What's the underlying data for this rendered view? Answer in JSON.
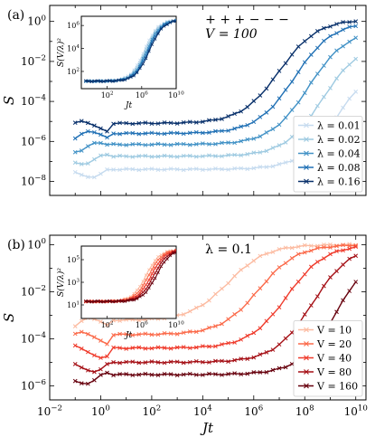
{
  "chart_data": [
    {
      "id": "a",
      "type": "line",
      "panel_label": "(a)",
      "annotation_lines": [
        "+ + + − − −",
        "V = 100"
      ],
      "xlabel": "",
      "ylabel": "S",
      "xscale": "log",
      "yscale": "log",
      "xlim_exp": [
        -2,
        10.4
      ],
      "ylim_exp": [
        -8.7,
        0.8
      ],
      "xticks_exp": [
        -2,
        0,
        2,
        4,
        6,
        8,
        10
      ],
      "yticks_exp": [
        -8,
        -6,
        -4,
        -2,
        0
      ],
      "ytick_labels": [
        "10^-8",
        "10^-6",
        "10^-4",
        "10^-2",
        "10^0"
      ],
      "legend_position": "lower-right",
      "colors": [
        "#c6dbef",
        "#9ecae1",
        "#4292c6",
        "#2171b5",
        "#08306b"
      ],
      "series": [
        {
          "name": "λ = 0.01",
          "plateau": 4e-08,
          "rise_center": 9.3,
          "final": 0.011
        },
        {
          "name": "λ = 0.02",
          "plateau": 1.8e-07,
          "rise_center": 8.7,
          "final": 0.1
        },
        {
          "name": "λ = 0.04",
          "plateau": 7e-07,
          "rise_center": 8.15,
          "final": 0.4
        },
        {
          "name": "λ = 0.08",
          "plateau": 2.5e-06,
          "rise_center": 7.6,
          "final": 1.0
        },
        {
          "name": "λ = 0.16",
          "plateau": 8e-06,
          "rise_center": 7.0,
          "final": 1.3
        }
      ],
      "inset": {
        "ylabel": "S(V/λ)²",
        "xlabel": "Jt",
        "xticks_exp": [
          2,
          6,
          10
        ],
        "yticks_exp": [
          2,
          4,
          6
        ],
        "ylim_exp": [
          0.5,
          6.8
        ],
        "collapsed_plateau_exp": 1.15,
        "rise_center": 6.3
      }
    },
    {
      "id": "b",
      "type": "line",
      "panel_label": "(b)",
      "annotation_lines": [
        "λ = 0.1"
      ],
      "xlabel": "Jt",
      "ylabel": "S",
      "xscale": "log",
      "yscale": "log",
      "xlim_exp": [
        -2,
        10.4
      ],
      "ylim_exp": [
        -6.6,
        0.4
      ],
      "xticks_exp": [
        -2,
        0,
        2,
        4,
        6,
        8,
        10
      ],
      "xtick_labels": [
        "10^-2",
        "10^0",
        "10^2",
        "10^4",
        "10^6",
        "10^8",
        "10^10"
      ],
      "yticks_exp": [
        -6,
        -4,
        -2,
        0
      ],
      "ytick_labels": [
        "10^-6",
        "10^-4",
        "10^-2",
        "10^0"
      ],
      "legend_position": "lower-right",
      "colors": [
        "#fcbba1",
        "#fb6a4a",
        "#ef3b2c",
        "#a50f15",
        "#67000d"
      ],
      "series": [
        {
          "name": "V = 10",
          "plateau": 0.0006,
          "rise_center": 5.0,
          "final": 1.0
        },
        {
          "name": "V = 20",
          "plateau": 0.00015,
          "rise_center": 6.2,
          "final": 1.0
        },
        {
          "name": "V = 40",
          "plateau": 4e-05,
          "rise_center": 7.3,
          "final": 1.0
        },
        {
          "name": "V = 80",
          "plateau": 1e-05,
          "rise_center": 8.3,
          "final": 1.0
        },
        {
          "name": "V = 160",
          "plateau": 3e-06,
          "rise_center": 9.3,
          "final": 1.0
        }
      ],
      "inset": {
        "ylabel": "S(V/λ)²",
        "xlabel": "Jt",
        "xticks_exp": [
          2,
          6,
          10
        ],
        "yticks_exp": [
          1,
          3,
          5
        ],
        "ylim_exp": [
          -0.2,
          6.2
        ],
        "collapsed_plateau_exp": 1.3,
        "rise_center": 6.5
      }
    }
  ]
}
